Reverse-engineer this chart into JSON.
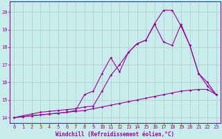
{
  "xlabel": "Windchill (Refroidissement éolien,°C)",
  "bg_color": "#c8ecec",
  "line_color": "#990099",
  "grid_color": "#b0c8c8",
  "xlim": [
    -0.5,
    23.5
  ],
  "ylim": [
    13.7,
    20.6
  ],
  "xticks": [
    0,
    1,
    2,
    3,
    4,
    5,
    6,
    7,
    8,
    9,
    10,
    11,
    12,
    13,
    14,
    15,
    16,
    17,
    18,
    19,
    20,
    21,
    22,
    23
  ],
  "yticks": [
    14,
    15,
    16,
    17,
    18,
    19,
    20
  ],
  "series1_x": [
    0,
    1,
    2,
    3,
    4,
    5,
    6,
    7,
    8,
    9,
    10,
    11,
    12,
    13,
    14,
    15,
    16,
    17,
    18,
    19,
    20,
    21,
    22,
    23
  ],
  "series1_y": [
    14.0,
    14.05,
    14.1,
    14.15,
    14.2,
    14.25,
    14.3,
    14.35,
    14.4,
    14.5,
    14.6,
    14.7,
    14.8,
    14.9,
    15.0,
    15.1,
    15.2,
    15.3,
    15.4,
    15.5,
    15.55,
    15.6,
    15.6,
    15.3
  ],
  "series2_x": [
    0,
    1,
    2,
    3,
    4,
    5,
    6,
    7,
    8,
    9,
    10,
    11,
    12,
    13,
    14,
    15,
    16,
    17,
    18,
    19,
    20,
    21,
    22,
    23
  ],
  "series2_y": [
    14.0,
    14.05,
    14.1,
    14.15,
    14.2,
    14.25,
    14.3,
    14.4,
    15.3,
    15.5,
    16.5,
    17.4,
    16.6,
    17.7,
    18.2,
    18.4,
    19.3,
    18.3,
    18.1,
    19.3,
    18.1,
    16.5,
    16.0,
    15.3
  ],
  "series3_x": [
    0,
    1,
    2,
    3,
    4,
    5,
    6,
    7,
    8,
    9,
    10,
    11,
    12,
    13,
    14,
    15,
    16,
    17,
    18,
    19,
    20,
    21,
    22,
    23
  ],
  "series3_y": [
    14.0,
    14.1,
    14.2,
    14.3,
    14.35,
    14.4,
    14.45,
    14.5,
    14.6,
    14.65,
    15.5,
    16.4,
    17.0,
    17.7,
    18.2,
    18.4,
    19.35,
    20.1,
    20.1,
    19.2,
    18.1,
    16.5,
    15.8,
    15.3
  ],
  "xlabel_fontsize": 5.5,
  "tick_fontsize": 5.0,
  "linewidth": 0.8,
  "markersize": 1.8
}
